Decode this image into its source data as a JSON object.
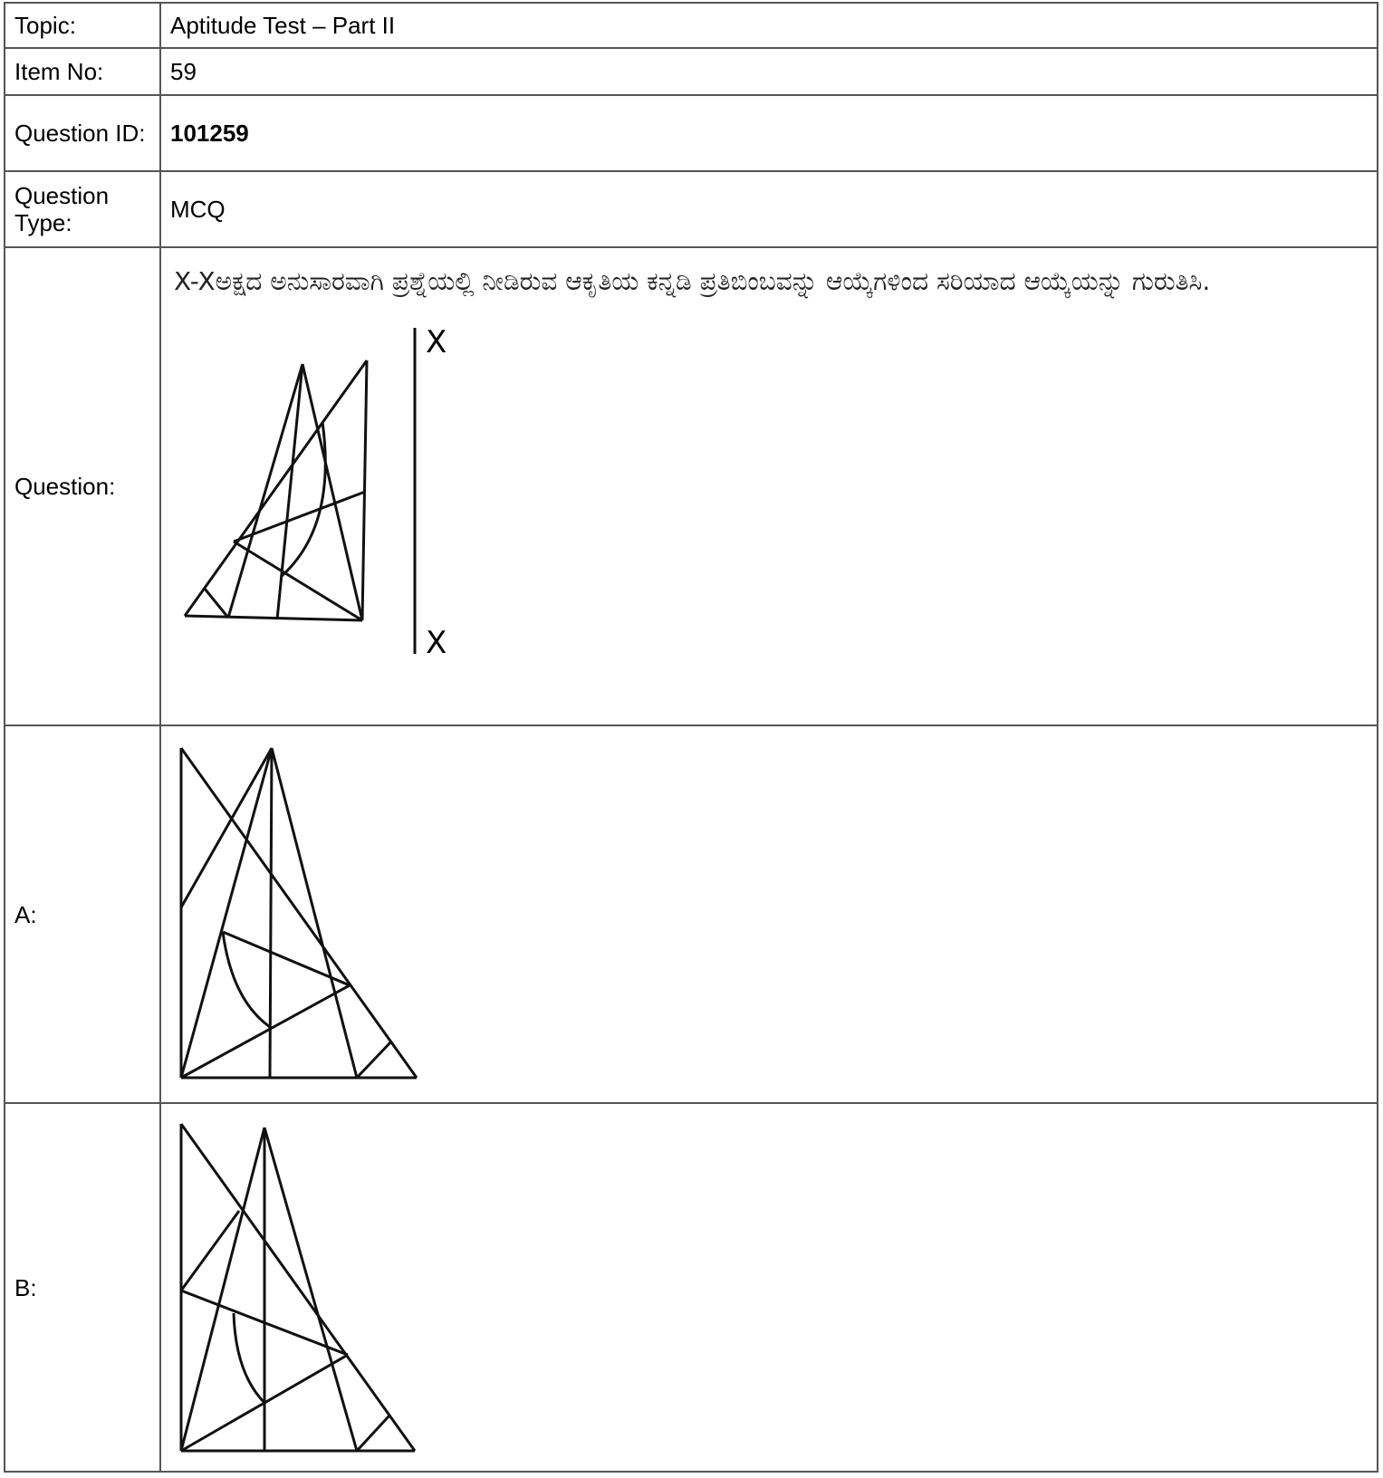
{
  "rows": {
    "topic": {
      "label": "Topic:",
      "value": "Aptitude Test – Part II"
    },
    "item_no": {
      "label": "Item No:",
      "value": "59"
    },
    "question_id": {
      "label": "Question ID:",
      "value": "101259"
    },
    "question_type": {
      "label": "Question Type:",
      "value": "MCQ"
    },
    "question": {
      "label": "Question:",
      "text": "X-Xಅಕ್ಷದ ಅನುಸಾರವಾಗಿ ಪ್ರಶ್ನೆಯಲ್ಲಿ ನೀಡಿರುವ ಆಕೃತಿಯ ಕನ್ನಡಿ ಪ್ರತಿಬಿಂಬವನ್ನು ಆಯ್ಕೆಗಳಿಂದ ಸರಿಯಾದ ಆಯ್ಕೆಯನ್ನು ಗುರುತಿಸಿ.",
      "axis_top": "X",
      "axis_bottom": "X"
    },
    "option_a": {
      "label": "A:"
    },
    "option_b": {
      "label": "B:"
    }
  }
}
